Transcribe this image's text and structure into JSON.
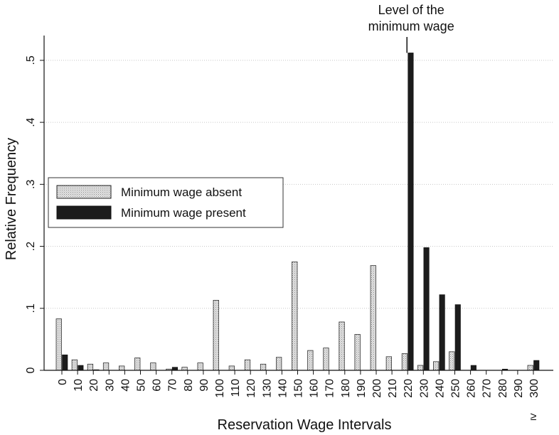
{
  "chart_data": {
    "type": "bar",
    "title": "",
    "xlabel": "Reservation Wage Intervals",
    "ylabel": "Relative Frequency",
    "ylim": [
      0,
      0.54
    ],
    "yticks": [
      {
        "value": 0,
        "label": "0"
      },
      {
        "value": 0.1,
        "label": ".1"
      },
      {
        "value": 0.2,
        "label": ".2"
      },
      {
        "value": 0.3,
        "label": ".3"
      },
      {
        "value": 0.4,
        "label": ".4"
      },
      {
        "value": 0.5,
        "label": ".5"
      }
    ],
    "grid": true,
    "legend_position": "middle-left",
    "categories": [
      "0",
      "10",
      "20",
      "30",
      "40",
      "50",
      "60",
      "70",
      "80",
      "90",
      "100",
      "110",
      "120",
      "130",
      "140",
      "150",
      "160",
      "170",
      "180",
      "190",
      "200",
      "210",
      "220",
      "230",
      "240",
      "250",
      "260",
      "270",
      "280",
      "290",
      "300"
    ],
    "last_category_prefix": "≥",
    "series": [
      {
        "name": "Minimum wage absent",
        "color": "#d6d6d6",
        "values": [
          0.083,
          0.017,
          0.01,
          0.012,
          0.007,
          0.02,
          0.012,
          0.002,
          0.005,
          0.012,
          0.113,
          0.007,
          0.017,
          0.01,
          0.021,
          0.175,
          0.032,
          0.036,
          0.078,
          0.058,
          0.169,
          0.022,
          0.027,
          0.008,
          0.014,
          0.03,
          0.0,
          0.0,
          0.0,
          0.0,
          0.008
        ]
      },
      {
        "name": "Minimum wage present",
        "color": "#1c1c1c",
        "values": [
          0.025,
          0.008,
          0.001,
          0.0,
          0.0,
          0.0,
          0.0,
          0.005,
          0.0,
          0.0,
          0.0,
          0.0,
          0.0,
          0.0,
          0.0,
          0.0,
          0.0,
          0.0,
          0.0,
          0.0,
          0.0,
          0.0,
          0.512,
          0.198,
          0.122,
          0.106,
          0.008,
          0.0,
          0.002,
          0.0,
          0.016
        ]
      }
    ],
    "annotation": {
      "lines": [
        "Level of the",
        "minimum wage"
      ],
      "at_category": "220"
    }
  }
}
